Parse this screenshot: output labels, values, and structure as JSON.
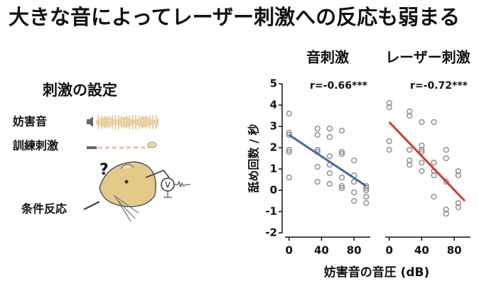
{
  "title": "大きな音によってレーザー刺激への反応も弱まる",
  "diagram": {
    "heading": "刺激の設定",
    "labels": [
      "妨害音",
      "訓練刺激",
      "条件反応"
    ],
    "question": "?"
  },
  "chart_data": [
    {
      "type": "scatter",
      "title": "音刺激",
      "annotation": "r=-0.66***",
      "ylabel": "舐め回数 / 秒",
      "xlabel": "妨害音の音圧 (dB)",
      "x": [
        0,
        0,
        0,
        0,
        0,
        0,
        35,
        35,
        35,
        35,
        35,
        35,
        50,
        50,
        50,
        50,
        50,
        50,
        65,
        65,
        65,
        65,
        65,
        65,
        80,
        80,
        80,
        80,
        80,
        95,
        95,
        95,
        95,
        95
      ],
      "values": [
        3.6,
        2.7,
        2.6,
        1.9,
        1.8,
        0.6,
        2.9,
        2.6,
        1.9,
        1.8,
        1.1,
        0.4,
        2.9,
        2.5,
        1.6,
        1.2,
        0.8,
        0.3,
        2.8,
        1.8,
        1.7,
        0.6,
        0.2,
        0.1,
        1.4,
        0.7,
        0.4,
        -0.1,
        -0.5,
        0.2,
        0.1,
        0,
        -0.3,
        -0.6
      ],
      "marker_color": "#8a8a8a",
      "fit": {
        "x": [
          0,
          95
        ],
        "values": [
          2.6,
          0.2
        ],
        "color": "#4a68a8"
      },
      "xlim": [
        -5,
        100
      ],
      "xticks": [
        0,
        40,
        80
      ],
      "ylim": [
        -2,
        5
      ],
      "yticks": [
        -2,
        -1,
        0,
        1,
        2,
        3,
        4,
        5
      ]
    },
    {
      "type": "scatter",
      "title": "レーザー刺激",
      "annotation": "r=-0.72***",
      "x": [
        0,
        0,
        0,
        0,
        25,
        25,
        25,
        25,
        25,
        40,
        40,
        40,
        40,
        40,
        40,
        55,
        55,
        55,
        55,
        55,
        70,
        70,
        70,
        70,
        70,
        85,
        85,
        85,
        85
      ],
      "values": [
        4.1,
        3.9,
        2.3,
        1.9,
        3.7,
        3.5,
        1.9,
        1.4,
        1.2,
        3.2,
        2.1,
        1.9,
        1.8,
        1.3,
        0.9,
        3.2,
        1.3,
        0.9,
        0.7,
        -0.3,
        1.9,
        1.5,
        0.4,
        -0.9,
        -1.1,
        0.9,
        0.7,
        -0.6,
        -0.8
      ],
      "marker_color": "#8a8a8a",
      "fit": {
        "x": [
          0,
          93
        ],
        "values": [
          3.2,
          -0.5
        ],
        "color": "#cc3a2a"
      },
      "xlim": [
        -5,
        100
      ],
      "xticks": [
        0,
        40,
        80
      ],
      "ylim": [
        -2,
        5
      ]
    }
  ]
}
